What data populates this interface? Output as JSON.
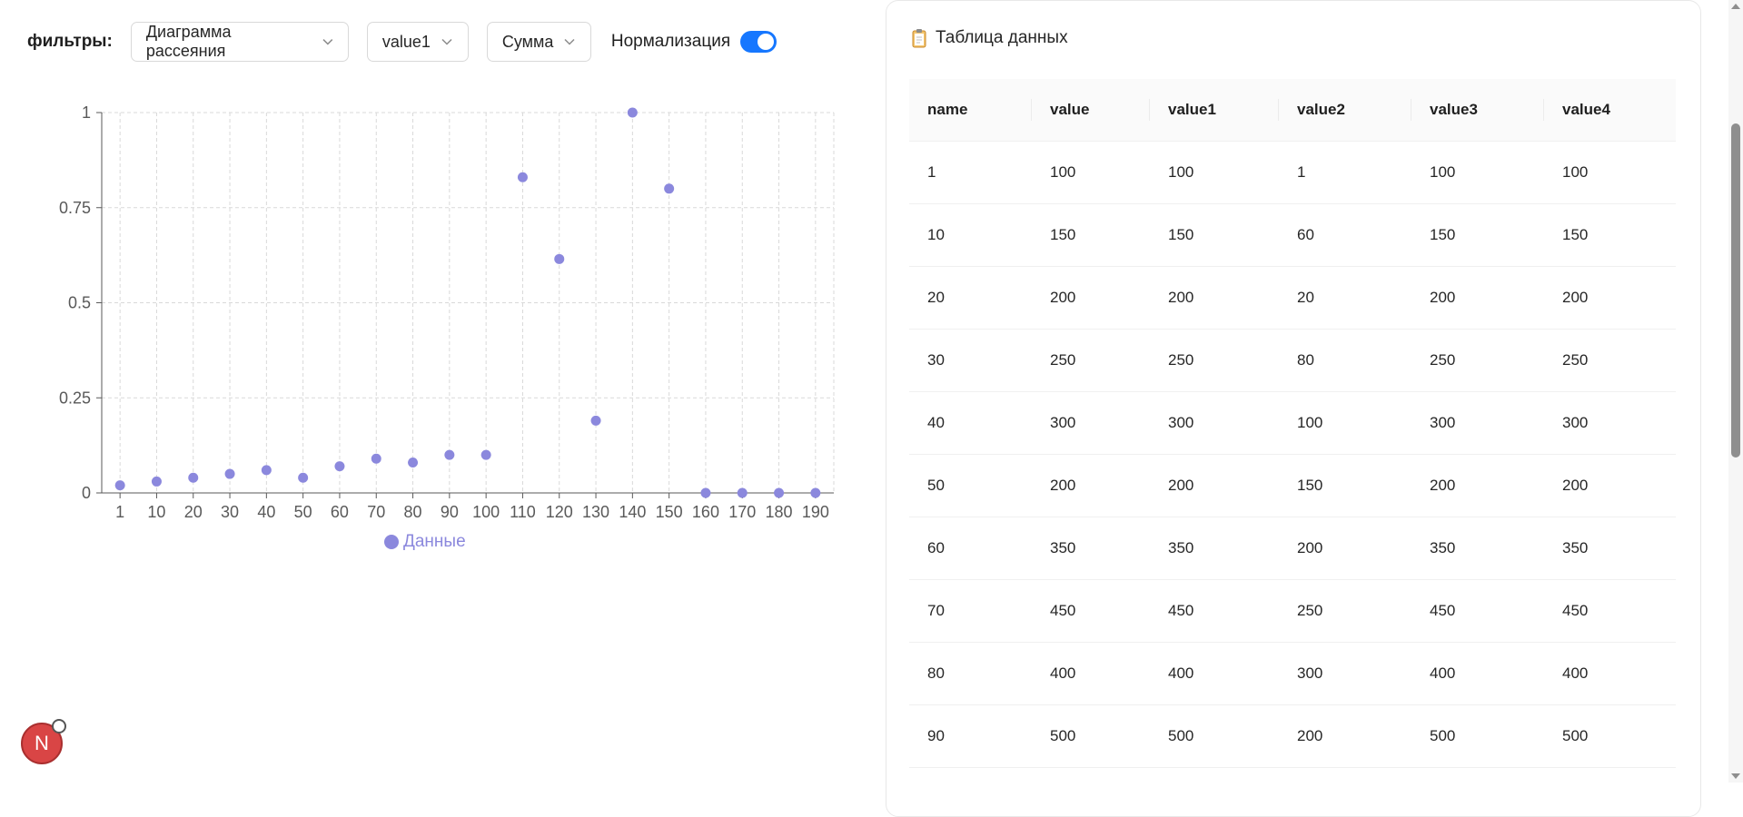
{
  "filters": {
    "label": "фильтры:",
    "chart_type": "Диаграмма рассеяния",
    "field": "value1",
    "aggregation": "Сумма",
    "normalization_label": "Нормализация",
    "normalization_on": true
  },
  "chart_data": {
    "type": "scatter",
    "categories": [
      "1",
      "10",
      "20",
      "30",
      "40",
      "50",
      "60",
      "70",
      "80",
      "90",
      "100",
      "110",
      "120",
      "130",
      "140",
      "150",
      "160",
      "170",
      "180",
      "190"
    ],
    "values": [
      0.02,
      0.03,
      0.04,
      0.05,
      0.06,
      0.04,
      0.07,
      0.09,
      0.08,
      0.1,
      0.1,
      0.83,
      0.615,
      0.19,
      1.0,
      0.8,
      0,
      0,
      0,
      0
    ],
    "yticks": [
      "0",
      "0.25",
      "0.5",
      "0.75",
      "1"
    ],
    "ylim": [
      0,
      1
    ],
    "grid": true,
    "legend": "bottom",
    "series_name": "Данные",
    "color": "#8b88dd"
  },
  "table": {
    "title": "Таблица данных",
    "columns": [
      "name",
      "value",
      "value1",
      "value2",
      "value3",
      "value4"
    ],
    "rows": [
      [
        "1",
        "100",
        "100",
        "1",
        "100",
        "100"
      ],
      [
        "10",
        "150",
        "150",
        "60",
        "150",
        "150"
      ],
      [
        "20",
        "200",
        "200",
        "20",
        "200",
        "200"
      ],
      [
        "30",
        "250",
        "250",
        "80",
        "250",
        "250"
      ],
      [
        "40",
        "300",
        "300",
        "100",
        "300",
        "300"
      ],
      [
        "50",
        "200",
        "200",
        "150",
        "200",
        "200"
      ],
      [
        "60",
        "350",
        "350",
        "200",
        "350",
        "350"
      ],
      [
        "70",
        "450",
        "450",
        "250",
        "450",
        "450"
      ],
      [
        "80",
        "400",
        "400",
        "300",
        "400",
        "400"
      ],
      [
        "90",
        "500",
        "500",
        "200",
        "500",
        "500"
      ]
    ]
  },
  "fab": {
    "letter": "N"
  }
}
